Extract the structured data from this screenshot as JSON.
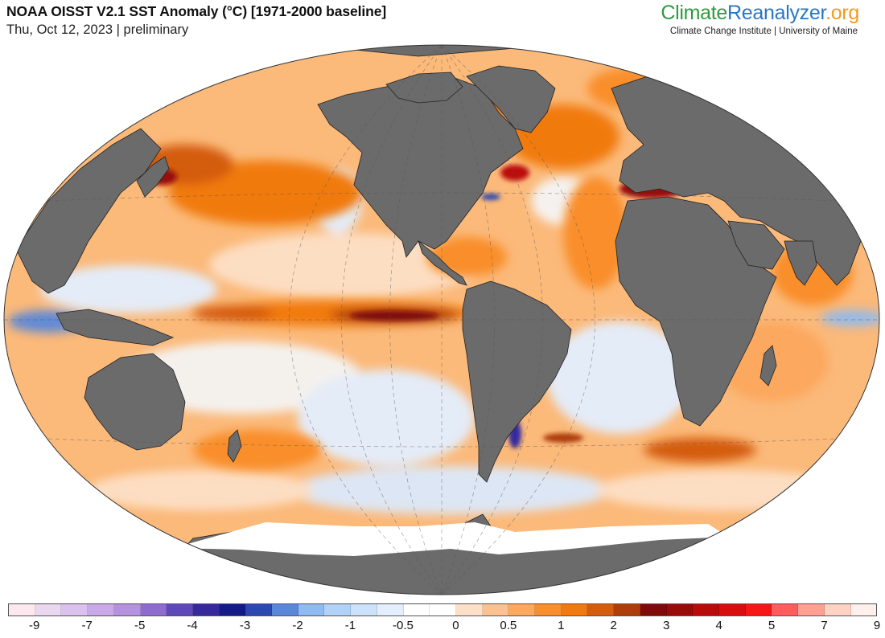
{
  "header": {
    "title": "NOAA OISST V2.1 SST Anomaly (°C) [1971-2000 baseline]",
    "subtitle": "Thu, Oct 12, 2023 | preliminary"
  },
  "brand": {
    "part1": "Climate",
    "part2": "Reanalyzer",
    "part3": ".org",
    "tagline": "Climate Change Institute | University of Maine"
  },
  "map": {
    "projection": "Winkel-tripel-like elliptical world map",
    "land_color": "#6b6b6b",
    "ice_color": "#ffffff"
  },
  "legend": {
    "swatch_colors": [
      "#fde8ef",
      "#ead7f0",
      "#dbc2ee",
      "#c9a9e8",
      "#b592e0",
      "#8e6ccf",
      "#5f49b8",
      "#36299b",
      "#141a86",
      "#2a48b0",
      "#5a88d9",
      "#8dbbf2",
      "#b0d2f7",
      "#cce2fa",
      "#e3efff",
      "#ffffff",
      "#ffffff",
      "#fde0c7",
      "#fcc18e",
      "#fca85f",
      "#f98e2c",
      "#f17a10",
      "#d45c0d",
      "#ae3d0c",
      "#7f0a0a",
      "#990a0a",
      "#bb0a0a",
      "#d90d0d",
      "#f71515",
      "#ff5c5c",
      "#ffa090",
      "#ffd2c3",
      "#fff0ec"
    ],
    "tick_labels": [
      "-9",
      "-7",
      "-5",
      "-4",
      "-3",
      "-2",
      "-1",
      "-0.5",
      "0",
      "0.5",
      "1",
      "2",
      "3",
      "4",
      "5",
      "7",
      "9"
    ],
    "tick_swatch_index": [
      1,
      3,
      5,
      7,
      9,
      11,
      13,
      15,
      17,
      19,
      21,
      23,
      25,
      27,
      29,
      31,
      33
    ]
  }
}
